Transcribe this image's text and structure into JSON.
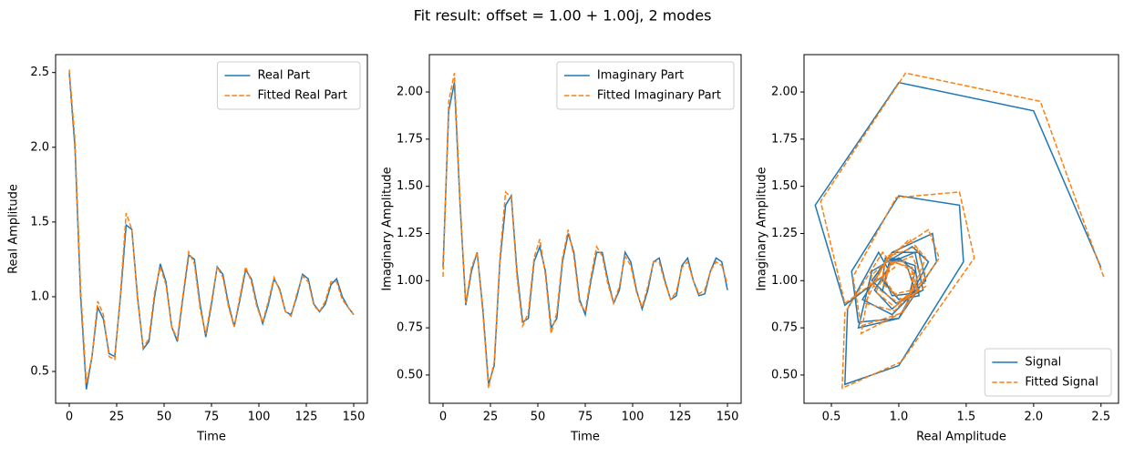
{
  "title": "Fit result: offset = 1.00 + 1.00j, 2 modes",
  "chart_data": [
    {
      "type": "line",
      "xlabel": "Time",
      "ylabel": "Real Amplitude",
      "legend": "upper right",
      "xlim": [
        -7.2,
        157.2
      ],
      "ylim": [
        0.287,
        2.62
      ],
      "xticks": [
        0,
        25,
        50,
        75,
        100,
        125,
        150
      ],
      "yticks": [
        {
          "value": 0.5,
          "label": "0.5"
        },
        {
          "value": 1.0,
          "label": "1.0"
        },
        {
          "value": 1.5,
          "label": "1.5"
        },
        {
          "value": 2.0,
          "label": "2.0"
        },
        {
          "value": 2.5,
          "label": "2.5"
        }
      ],
      "x": [
        0,
        3,
        6,
        9,
        12,
        15,
        18,
        21,
        24,
        27,
        30,
        33,
        36,
        39,
        42,
        45,
        48,
        51,
        54,
        57,
        60,
        63,
        66,
        69,
        72,
        75,
        78,
        81,
        84,
        87,
        90,
        93,
        96,
        99,
        102,
        105,
        108,
        111,
        114,
        117,
        120,
        123,
        126,
        129,
        132,
        135,
        138,
        141,
        144,
        147,
        150
      ],
      "series": [
        {
          "name": "Real Part",
          "color": "#1f77b4",
          "linestyle": "solid",
          "values": [
            2.5,
            2.0,
            1.0,
            0.38,
            0.6,
            0.93,
            0.85,
            0.62,
            0.6,
            1.0,
            1.48,
            1.45,
            1.0,
            0.65,
            0.7,
            1.0,
            1.22,
            1.1,
            0.8,
            0.7,
            1.0,
            1.28,
            1.25,
            0.95,
            0.73,
            0.95,
            1.2,
            1.15,
            0.95,
            0.8,
            0.98,
            1.18,
            1.12,
            0.95,
            0.82,
            0.95,
            1.12,
            1.05,
            0.9,
            0.88,
            1.0,
            1.15,
            1.12,
            0.95,
            0.9,
            0.95,
            1.08,
            1.12,
            1.0,
            0.93,
            0.88
          ]
        },
        {
          "name": "Fitted Real Part",
          "color": "#ff7f0e",
          "linestyle": "dashed",
          "values": [
            2.52,
            2.05,
            1.05,
            0.42,
            0.6,
            0.97,
            0.88,
            0.6,
            0.58,
            1.02,
            1.56,
            1.45,
            0.98,
            0.66,
            0.72,
            1.03,
            1.2,
            1.08,
            0.8,
            0.72,
            1.02,
            1.3,
            1.22,
            0.92,
            0.75,
            0.97,
            1.2,
            1.13,
            0.93,
            0.8,
            1.0,
            1.2,
            1.1,
            0.93,
            0.83,
            0.97,
            1.13,
            1.04,
            0.9,
            0.87,
            1.02,
            1.14,
            1.1,
            0.94,
            0.9,
            0.97,
            1.1,
            1.1,
            0.98,
            0.93,
            0.88
          ]
        }
      ]
    },
    {
      "type": "line",
      "xlabel": "Time",
      "ylabel": "Imaginary Amplitude",
      "legend": "upper right",
      "xlim": [
        -7.2,
        157.2
      ],
      "ylim": [
        0.35,
        2.198
      ],
      "xticks": [
        0,
        25,
        50,
        75,
        100,
        125,
        150
      ],
      "yticks": [
        {
          "value": 0.5,
          "label": "0.50"
        },
        {
          "value": 0.75,
          "label": "0.75"
        },
        {
          "value": 1.0,
          "label": "1.00"
        },
        {
          "value": 1.25,
          "label": "1.25"
        },
        {
          "value": 1.5,
          "label": "1.50"
        },
        {
          "value": 1.75,
          "label": "1.75"
        },
        {
          "value": 2.0,
          "label": "2.00"
        }
      ],
      "x": [
        0,
        3,
        6,
        9,
        12,
        15,
        18,
        21,
        24,
        27,
        30,
        33,
        36,
        39,
        42,
        45,
        48,
        51,
        54,
        57,
        60,
        63,
        66,
        69,
        72,
        75,
        78,
        81,
        84,
        87,
        90,
        93,
        96,
        99,
        102,
        105,
        108,
        111,
        114,
        117,
        120,
        123,
        126,
        129,
        132,
        135,
        138,
        141,
        144,
        147,
        150
      ],
      "series": [
        {
          "name": "Imaginary Part",
          "color": "#1f77b4",
          "linestyle": "solid",
          "values": [
            1.07,
            1.9,
            2.05,
            1.4,
            0.87,
            1.05,
            1.15,
            0.85,
            0.45,
            0.55,
            1.1,
            1.4,
            1.45,
            1.05,
            0.78,
            0.8,
            1.1,
            1.18,
            1.05,
            0.75,
            0.8,
            1.1,
            1.25,
            1.15,
            0.9,
            0.82,
            1.0,
            1.15,
            1.15,
            1.0,
            0.88,
            0.95,
            1.15,
            1.1,
            0.95,
            0.85,
            0.95,
            1.1,
            1.12,
            1.0,
            0.9,
            0.92,
            1.08,
            1.12,
            1.0,
            0.92,
            0.93,
            1.05,
            1.12,
            1.1,
            0.95
          ]
        },
        {
          "name": "Fitted Imaginary Part",
          "color": "#ff7f0e",
          "linestyle": "dashed",
          "values": [
            1.02,
            1.95,
            2.1,
            1.42,
            0.88,
            1.07,
            1.15,
            0.83,
            0.43,
            0.57,
            1.12,
            1.47,
            1.44,
            1.02,
            0.76,
            0.83,
            1.12,
            1.22,
            1.03,
            0.72,
            0.83,
            1.12,
            1.27,
            1.13,
            0.88,
            0.84,
            1.02,
            1.18,
            1.13,
            0.98,
            0.88,
            0.97,
            1.13,
            1.08,
            0.94,
            0.86,
            0.97,
            1.1,
            1.1,
            0.99,
            0.9,
            0.94,
            1.07,
            1.1,
            1.0,
            0.93,
            0.95,
            1.05,
            1.1,
            1.08,
            0.98
          ]
        }
      ]
    },
    {
      "type": "line",
      "xlabel": "Real Amplitude",
      "ylabel": "Imaginary Amplitude",
      "legend": "lower right",
      "xlim": [
        0.297,
        2.63
      ],
      "ylim": [
        0.35,
        2.198
      ],
      "xticks": [
        {
          "value": 0.5,
          "label": "0.5"
        },
        {
          "value": 1.0,
          "label": "1.0"
        },
        {
          "value": 1.5,
          "label": "1.5"
        },
        {
          "value": 2.0,
          "label": "2.0"
        },
        {
          "value": 2.5,
          "label": "2.5"
        }
      ],
      "yticks": [
        {
          "value": 0.5,
          "label": "0.50"
        },
        {
          "value": 0.75,
          "label": "0.75"
        },
        {
          "value": 1.0,
          "label": "1.00"
        },
        {
          "value": 1.25,
          "label": "1.25"
        },
        {
          "value": 1.5,
          "label": "1.50"
        },
        {
          "value": 1.75,
          "label": "1.75"
        },
        {
          "value": 2.0,
          "label": "2.00"
        }
      ],
      "series": [
        {
          "name": "Signal",
          "color": "#1f77b4",
          "linestyle": "solid",
          "x": [
            2.5,
            2.0,
            1.0,
            0.38,
            0.6,
            0.93,
            0.85,
            0.62,
            0.6,
            1.0,
            1.48,
            1.45,
            1.0,
            0.65,
            0.7,
            1.0,
            1.22,
            1.1,
            0.8,
            0.7,
            1.0,
            1.28,
            1.25,
            0.95,
            0.73,
            0.95,
            1.2,
            1.15,
            0.95,
            0.8,
            0.98,
            1.18,
            1.12,
            0.95,
            0.82,
            0.95,
            1.12,
            1.05,
            0.9,
            0.88,
            1.0,
            1.15,
            1.12,
            0.95,
            0.9,
            0.95,
            1.08,
            1.12,
            1.0,
            0.93,
            0.88
          ],
          "values": [
            1.07,
            1.9,
            2.05,
            1.4,
            0.87,
            1.05,
            1.15,
            0.85,
            0.45,
            0.55,
            1.1,
            1.4,
            1.45,
            1.05,
            0.78,
            0.8,
            1.1,
            1.18,
            1.05,
            0.75,
            0.8,
            1.1,
            1.25,
            1.15,
            0.9,
            0.82,
            1.0,
            1.15,
            1.15,
            1.0,
            0.88,
            0.95,
            1.15,
            1.1,
            0.95,
            0.85,
            0.95,
            1.1,
            1.12,
            1.0,
            0.9,
            0.92,
            1.08,
            1.12,
            1.0,
            0.92,
            0.93,
            1.05,
            1.12,
            1.1,
            0.95
          ]
        },
        {
          "name": "Fitted Signal",
          "color": "#ff7f0e",
          "linestyle": "dashed",
          "x": [
            2.52,
            2.05,
            1.05,
            0.42,
            0.6,
            0.97,
            0.88,
            0.6,
            0.58,
            1.02,
            1.56,
            1.45,
            0.98,
            0.66,
            0.72,
            1.03,
            1.2,
            1.08,
            0.8,
            0.72,
            1.02,
            1.3,
            1.22,
            0.92,
            0.75,
            0.97,
            1.2,
            1.13,
            0.93,
            0.8,
            1.0,
            1.2,
            1.1,
            0.93,
            0.83,
            0.97,
            1.13,
            1.04,
            0.9,
            0.87,
            1.02,
            1.14,
            1.1,
            0.94,
            0.9,
            0.97,
            1.1,
            1.1,
            0.98,
            0.93,
            0.88
          ],
          "values": [
            1.02,
            1.95,
            2.1,
            1.42,
            0.88,
            1.07,
            1.15,
            0.83,
            0.43,
            0.57,
            1.12,
            1.47,
            1.44,
            1.02,
            0.76,
            0.83,
            1.12,
            1.22,
            1.03,
            0.72,
            0.83,
            1.12,
            1.27,
            1.13,
            0.88,
            0.84,
            1.02,
            1.18,
            1.13,
            0.98,
            0.88,
            0.97,
            1.13,
            1.08,
            0.94,
            0.86,
            0.97,
            1.1,
            1.1,
            0.99,
            0.9,
            0.94,
            1.07,
            1.1,
            1.0,
            0.93,
            0.95,
            1.05,
            1.1,
            1.08,
            0.98
          ]
        }
      ]
    }
  ]
}
